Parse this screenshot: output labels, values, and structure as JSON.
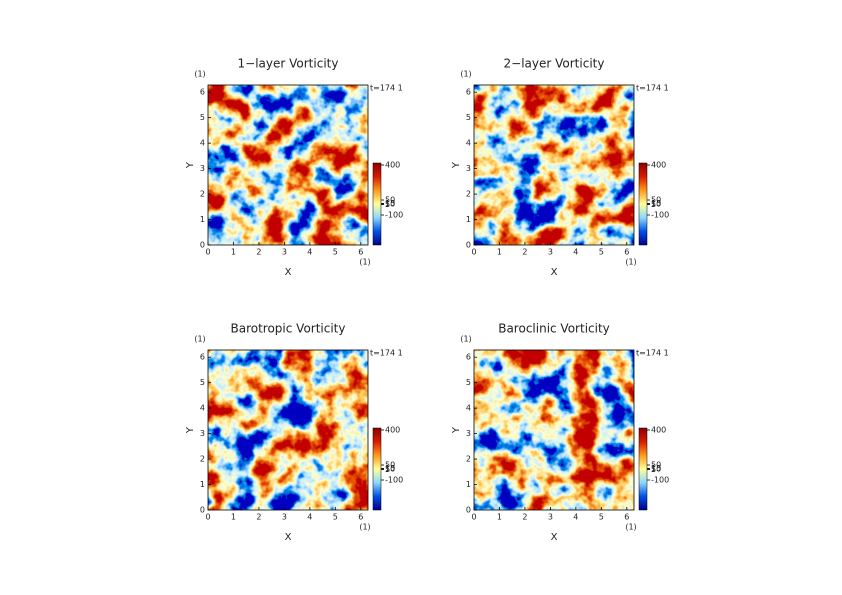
{
  "chart_data": [
    {
      "type": "field",
      "title": "1−layer Vorticity",
      "x_label": "X",
      "y_label": "Y",
      "x_unit": "(1)",
      "y_unit": "(1)",
      "annotation": "t=174 1",
      "xlim": [
        0,
        6.2832
      ],
      "ylim": [
        0,
        6.2832
      ],
      "xticks": [
        0,
        1,
        2,
        3,
        4,
        5,
        6
      ],
      "yticks": [
        0,
        1,
        2,
        3,
        4,
        5,
        6
      ],
      "colorbar": {
        "ylim": [
          -400,
          420
        ],
        "yticks": [
          400,
          50,
          15,
          10,
          5,
          -100
        ],
        "colormap": [
          "#00008c",
          "#0050e6",
          "#8cd9ff",
          "#ffff99",
          "#ff9919",
          "#d91a00",
          "#8c0000"
        ]
      }
    },
    {
      "type": "field",
      "title": "2−layer Vorticity",
      "x_label": "X",
      "y_label": "Y",
      "x_unit": "(1)",
      "y_unit": "(1)",
      "annotation": "t=174 1",
      "xlim": [
        0,
        6.2832
      ],
      "ylim": [
        0,
        6.2832
      ],
      "xticks": [
        0,
        1,
        2,
        3,
        4,
        5,
        6
      ],
      "yticks": [
        0,
        1,
        2,
        3,
        4,
        5,
        6
      ],
      "colorbar": {
        "ylim": [
          -400,
          420
        ],
        "yticks": [
          400,
          50,
          15,
          10,
          5,
          -100
        ],
        "colormap": [
          "#00008c",
          "#0050e6",
          "#8cd9ff",
          "#ffff99",
          "#ff9919",
          "#d91a00",
          "#8c0000"
        ]
      }
    },
    {
      "type": "field",
      "title": "Barotropic Vorticity",
      "x_label": "X",
      "y_label": "Y",
      "x_unit": "(1)",
      "y_unit": "(1)",
      "annotation": "t=174 1",
      "xlim": [
        0,
        6.2832
      ],
      "ylim": [
        0,
        6.2832
      ],
      "xticks": [
        0,
        1,
        2,
        3,
        4,
        5,
        6
      ],
      "yticks": [
        0,
        1,
        2,
        3,
        4,
        5,
        6
      ],
      "colorbar": {
        "ylim": [
          -400,
          420
        ],
        "yticks": [
          400,
          50,
          15,
          10,
          5,
          -100
        ],
        "colormap": [
          "#00008c",
          "#0050e6",
          "#8cd9ff",
          "#ffff99",
          "#ff9919",
          "#d91a00",
          "#8c0000"
        ]
      }
    },
    {
      "type": "field",
      "title": "Baroclinic Vorticity",
      "x_label": "X",
      "y_label": "Y",
      "x_unit": "(1)",
      "y_unit": "(1)",
      "annotation": "t=174 1",
      "xlim": [
        0,
        6.2832
      ],
      "ylim": [
        0,
        6.2832
      ],
      "xticks": [
        0,
        1,
        2,
        3,
        4,
        5,
        6
      ],
      "yticks": [
        0,
        1,
        2,
        3,
        4,
        5,
        6
      ],
      "colorbar": {
        "ylim": [
          -400,
          420
        ],
        "yticks": [
          400,
          50,
          15,
          10,
          5,
          -100
        ],
        "colormap": [
          "#00008c",
          "#0050e6",
          "#8cd9ff",
          "#ffff99",
          "#ff9919",
          "#d91a00",
          "#8c0000"
        ]
      }
    }
  ]
}
